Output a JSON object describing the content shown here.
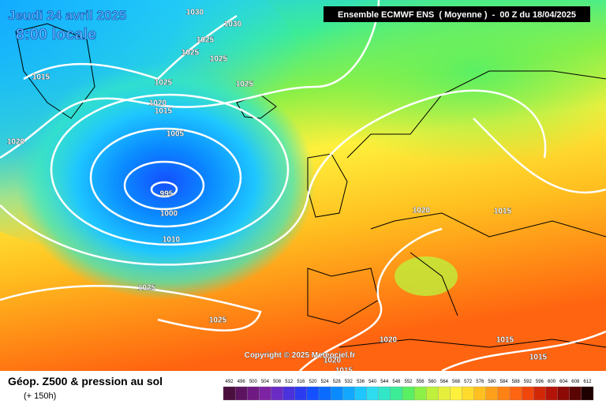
{
  "title": "Jeudi 24 avril 2025",
  "subtitle": "8:00 locale",
  "header": "Ensemble ECMWF ENS  ( Moyenne )  -  00 Z du 18/04/2025",
  "isobar_labels": [
    "1030",
    "1030",
    "1025",
    "1025",
    "1025",
    "1015",
    "1025",
    "1025",
    "1020",
    "1015",
    "1020",
    "1005",
    "995",
    "1000",
    "1020",
    "1015",
    "1010",
    "1025",
    "1025",
    "1020",
    "1015",
    "1015",
    "1020",
    "1015"
  ],
  "copyright": "Copyright © 2025 Meteociel.fr",
  "footer": {
    "title": "Géop. Z500 & pression au sol",
    "lead": "(+ 150h)"
  },
  "scale": {
    "values": [
      492,
      496,
      500,
      504,
      508,
      512,
      516,
      520,
      524,
      528,
      532,
      536,
      540,
      544,
      548,
      552,
      556,
      560,
      564,
      568,
      572,
      576,
      580,
      584,
      588,
      592,
      596,
      600,
      604,
      608,
      612
    ],
    "colors": [
      "#4b0f3e",
      "#5c1460",
      "#6e1a82",
      "#7d23a3",
      "#6a2cc4",
      "#4a32dc",
      "#2b3cf0",
      "#1450ff",
      "#0a6cff",
      "#0a8aff",
      "#12a8ff",
      "#1ec6ff",
      "#2edcf0",
      "#32e6c8",
      "#3cec96",
      "#5af064",
      "#8cf046",
      "#bef03c",
      "#e6f03c",
      "#fff03c",
      "#ffdc2c",
      "#ffc020",
      "#ffa01a",
      "#ff8214",
      "#ff6410",
      "#f0460c",
      "#d22808",
      "#b41408",
      "#8c0a06",
      "#5a0404",
      "#1e0000"
    ]
  }
}
